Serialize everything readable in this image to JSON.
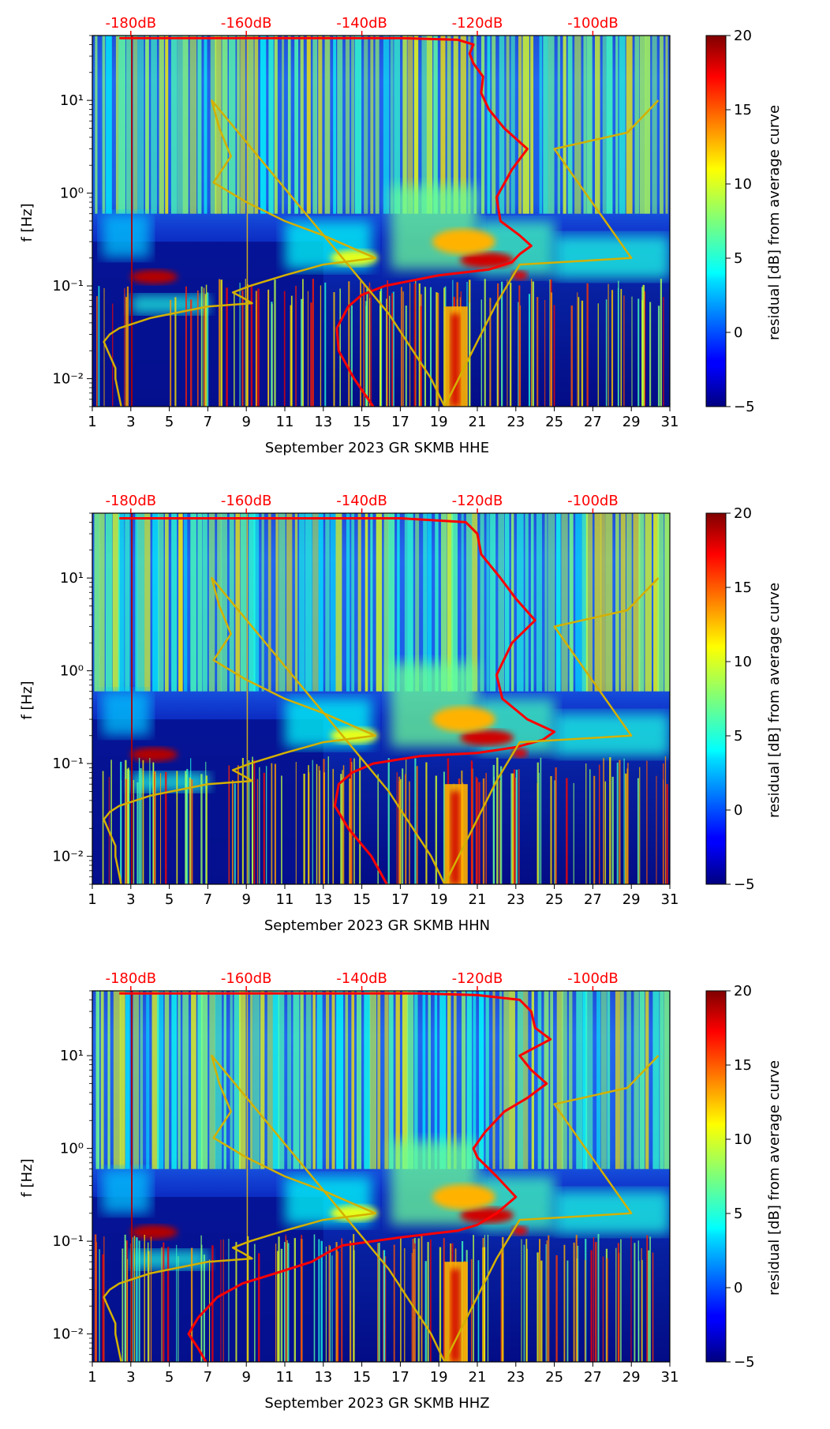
{
  "chart_data": [
    {
      "type": "heatmap",
      "xlabel": "September 2023 GR SKMB  HHE",
      "ylabel": "f [Hz]",
      "x_ticks": [
        "1",
        "3",
        "5",
        "7",
        "9",
        "11",
        "13",
        "15",
        "17",
        "19",
        "21",
        "23",
        "25",
        "27",
        "29",
        "31"
      ],
      "xlim": [
        1,
        31
      ],
      "ylim": [
        0.005,
        50
      ],
      "y_scale": "log",
      "y_ticks": [
        "10⁻²",
        "10⁻¹",
        "10⁰",
        "10¹"
      ],
      "top_ticks": [
        "-180dB",
        "-160dB",
        "-140dB",
        "-120dB",
        "-100dB"
      ],
      "colorbar": {
        "label": "residual [dB] from average curve",
        "range": [
          -5,
          20
        ],
        "ticks": [
          "−5",
          "0",
          "5",
          "10",
          "15",
          "20"
        ],
        "colormap": "jet"
      },
      "series": [
        {
          "color": "#ff0000",
          "x": [
            15.6,
            14.6,
            13.8,
            13.7,
            14.3,
            15.0,
            16.2,
            19.0,
            21.6,
            22.8,
            23.2,
            23.8,
            23.2,
            22.2,
            22.0,
            22.8,
            23.6,
            22.4,
            21.6,
            21.2,
            21.3,
            20.8,
            20.6,
            20.8,
            20.0,
            17.0,
            11.0,
            2.4
          ],
          "y": [
            0.005,
            0.01,
            0.02,
            0.035,
            0.06,
            0.08,
            0.1,
            0.13,
            0.15,
            0.18,
            0.22,
            0.27,
            0.35,
            0.5,
            0.9,
            1.8,
            3.0,
            5.0,
            8.0,
            12.0,
            18.0,
            25.0,
            32.0,
            40.0,
            45.0,
            47.0,
            47.0,
            47.0
          ]
        },
        {
          "color": "#d4b000",
          "x": [
            2.5,
            2.2,
            2.2,
            1.8,
            1.6,
            1.9,
            2.4,
            4.0,
            7.0,
            9.3,
            8.8,
            8.3,
            9.2,
            11.0,
            13.0,
            15.7,
            13.0,
            11.0,
            9.0,
            7.3,
            8.2,
            7.6,
            7.2,
            16.4,
            18.6,
            19.3,
            22.0,
            23.2,
            29.0,
            25.0,
            28.8,
            30.4
          ],
          "y": [
            0.005,
            0.01,
            0.013,
            0.02,
            0.025,
            0.03,
            0.035,
            0.045,
            0.06,
            0.065,
            0.075,
            0.085,
            0.1,
            0.13,
            0.17,
            0.2,
            0.35,
            0.5,
            0.8,
            1.3,
            2.5,
            5.0,
            10.0,
            0.05,
            0.01,
            0.005,
            0.065,
            0.17,
            0.2,
            3.0,
            4.5,
            10.0
          ]
        }
      ]
    },
    {
      "type": "heatmap",
      "xlabel": "September 2023 GR SKMB  HHN",
      "ylabel": "f [Hz]",
      "x_ticks": [
        "1",
        "3",
        "5",
        "7",
        "9",
        "11",
        "13",
        "15",
        "17",
        "19",
        "21",
        "23",
        "25",
        "27",
        "29",
        "31"
      ],
      "xlim": [
        1,
        31
      ],
      "ylim": [
        0.005,
        50
      ],
      "y_scale": "log",
      "y_ticks": [
        "10⁻²",
        "10⁻¹",
        "10⁰",
        "10¹"
      ],
      "top_ticks": [
        "-180dB",
        "-160dB",
        "-140dB",
        "-120dB",
        "-100dB"
      ],
      "colorbar": {
        "label": "residual [dB] from average curve",
        "range": [
          -5,
          20
        ],
        "ticks": [
          "−5",
          "0",
          "5",
          "10",
          "15",
          "20"
        ],
        "colormap": "jet"
      },
      "series": [
        {
          "color": "#ff0000",
          "x": [
            16.3,
            15.5,
            14.3,
            13.6,
            13.8,
            14.5,
            15.6,
            18.0,
            21.0,
            23.0,
            24.4,
            25.0,
            23.6,
            22.3,
            22.0,
            22.8,
            24.0,
            23.0,
            22.2,
            21.2,
            21.0,
            20.4,
            17.0,
            11.0,
            2.4
          ],
          "y": [
            0.005,
            0.01,
            0.02,
            0.035,
            0.06,
            0.08,
            0.1,
            0.12,
            0.13,
            0.15,
            0.18,
            0.22,
            0.3,
            0.5,
            0.9,
            2.0,
            3.5,
            6.0,
            10.0,
            18.0,
            30.0,
            40.0,
            44.0,
            44.0,
            44.0
          ]
        },
        {
          "color": "#d4b000",
          "x": [
            2.5,
            2.2,
            2.2,
            1.8,
            1.6,
            1.9,
            2.4,
            4.0,
            7.0,
            9.3,
            8.8,
            8.3,
            9.2,
            11.0,
            13.0,
            15.7,
            13.0,
            11.0,
            9.0,
            7.3,
            8.2,
            7.6,
            7.2,
            16.4,
            18.6,
            19.3,
            22.0,
            23.2,
            29.0,
            25.0,
            28.8,
            30.4
          ],
          "y": [
            0.005,
            0.01,
            0.013,
            0.02,
            0.025,
            0.03,
            0.035,
            0.045,
            0.06,
            0.065,
            0.075,
            0.085,
            0.1,
            0.13,
            0.17,
            0.2,
            0.35,
            0.5,
            0.8,
            1.3,
            2.5,
            5.0,
            10.0,
            0.05,
            0.01,
            0.005,
            0.065,
            0.17,
            0.2,
            3.0,
            4.5,
            10.0
          ]
        }
      ]
    },
    {
      "type": "heatmap",
      "xlabel": "September 2023 GR SKMB  HHZ",
      "ylabel": "f [Hz]",
      "x_ticks": [
        "1",
        "3",
        "5",
        "7",
        "9",
        "11",
        "13",
        "15",
        "17",
        "19",
        "21",
        "23",
        "25",
        "27",
        "29",
        "31"
      ],
      "xlim": [
        1,
        31
      ],
      "ylim": [
        0.005,
        50
      ],
      "y_scale": "log",
      "y_ticks": [
        "10⁻²",
        "10⁻¹",
        "10⁰",
        "10¹"
      ],
      "top_ticks": [
        "-180dB",
        "-160dB",
        "-140dB",
        "-120dB",
        "-100dB"
      ],
      "colorbar": {
        "label": "residual [dB] from average curve",
        "range": [
          -5,
          20
        ],
        "ticks": [
          "−5",
          "0",
          "5",
          "10",
          "15",
          "20"
        ],
        "colormap": "jet"
      },
      "series": [
        {
          "color": "#ff0000",
          "x": [
            6.9,
            6.5,
            6.0,
            6.5,
            7.5,
            8.8,
            10.5,
            12.4,
            13.2,
            14.0,
            17.0,
            20.0,
            21.0,
            22.0,
            23.0,
            22.0,
            21.0,
            20.8,
            21.4,
            22.4,
            23.6,
            24.6,
            23.8,
            23.2,
            24.8,
            24.0,
            23.8,
            23.2,
            21.0,
            18.0,
            11.0,
            2.4
          ],
          "y": [
            0.005,
            0.007,
            0.01,
            0.015,
            0.025,
            0.035,
            0.045,
            0.06,
            0.075,
            0.09,
            0.11,
            0.13,
            0.15,
            0.2,
            0.3,
            0.5,
            0.8,
            1.0,
            1.5,
            2.5,
            3.5,
            5.0,
            7.0,
            10.0,
            15.0,
            20.0,
            30.0,
            40.0,
            45.0,
            47.0,
            47.0,
            47.0
          ]
        },
        {
          "color": "#d4b000",
          "x": [
            2.5,
            2.2,
            2.2,
            1.8,
            1.6,
            1.9,
            2.4,
            4.0,
            7.0,
            9.3,
            8.8,
            8.3,
            9.2,
            11.0,
            13.0,
            15.7,
            13.0,
            11.0,
            9.0,
            7.3,
            8.2,
            7.6,
            7.2,
            16.4,
            18.6,
            19.3,
            22.0,
            23.2,
            29.0,
            25.0,
            28.8,
            30.4
          ],
          "y": [
            0.005,
            0.01,
            0.013,
            0.02,
            0.025,
            0.03,
            0.035,
            0.045,
            0.06,
            0.065,
            0.075,
            0.085,
            0.1,
            0.13,
            0.17,
            0.2,
            0.35,
            0.5,
            0.8,
            1.3,
            2.5,
            5.0,
            10.0,
            0.05,
            0.01,
            0.005,
            0.065,
            0.17,
            0.2,
            3.0,
            4.5,
            10.0
          ]
        }
      ]
    }
  ]
}
